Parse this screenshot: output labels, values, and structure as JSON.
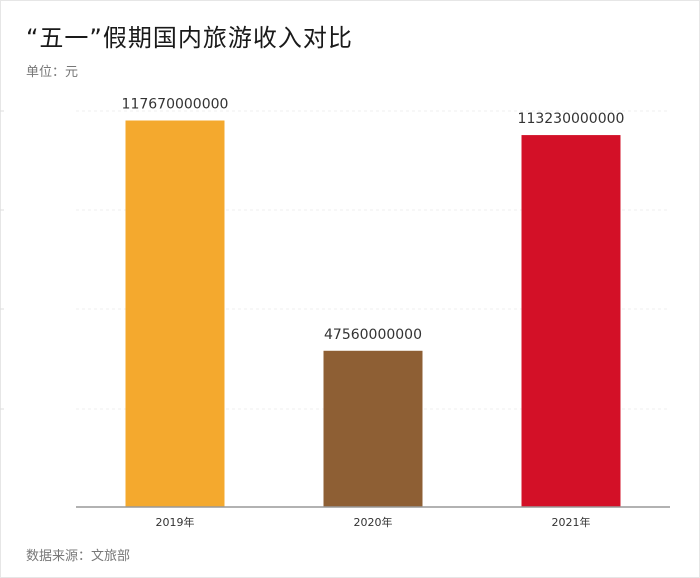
{
  "title": "“五一”假期国内旅游收入对比",
  "unit": "单位：元",
  "source": "数据来源：文旅部",
  "chart_data": {
    "type": "bar",
    "categories": [
      "2019年",
      "2020年",
      "2021年"
    ],
    "values": [
      117670000000,
      47560000000,
      113230000000
    ],
    "data_labels": [
      "117670000000",
      "47560000000",
      "113230000000"
    ],
    "colors": [
      "#F4A92E",
      "#8E5F34",
      "#D31027"
    ],
    "ylim": [
      0,
      130000000000
    ],
    "grid": true
  }
}
